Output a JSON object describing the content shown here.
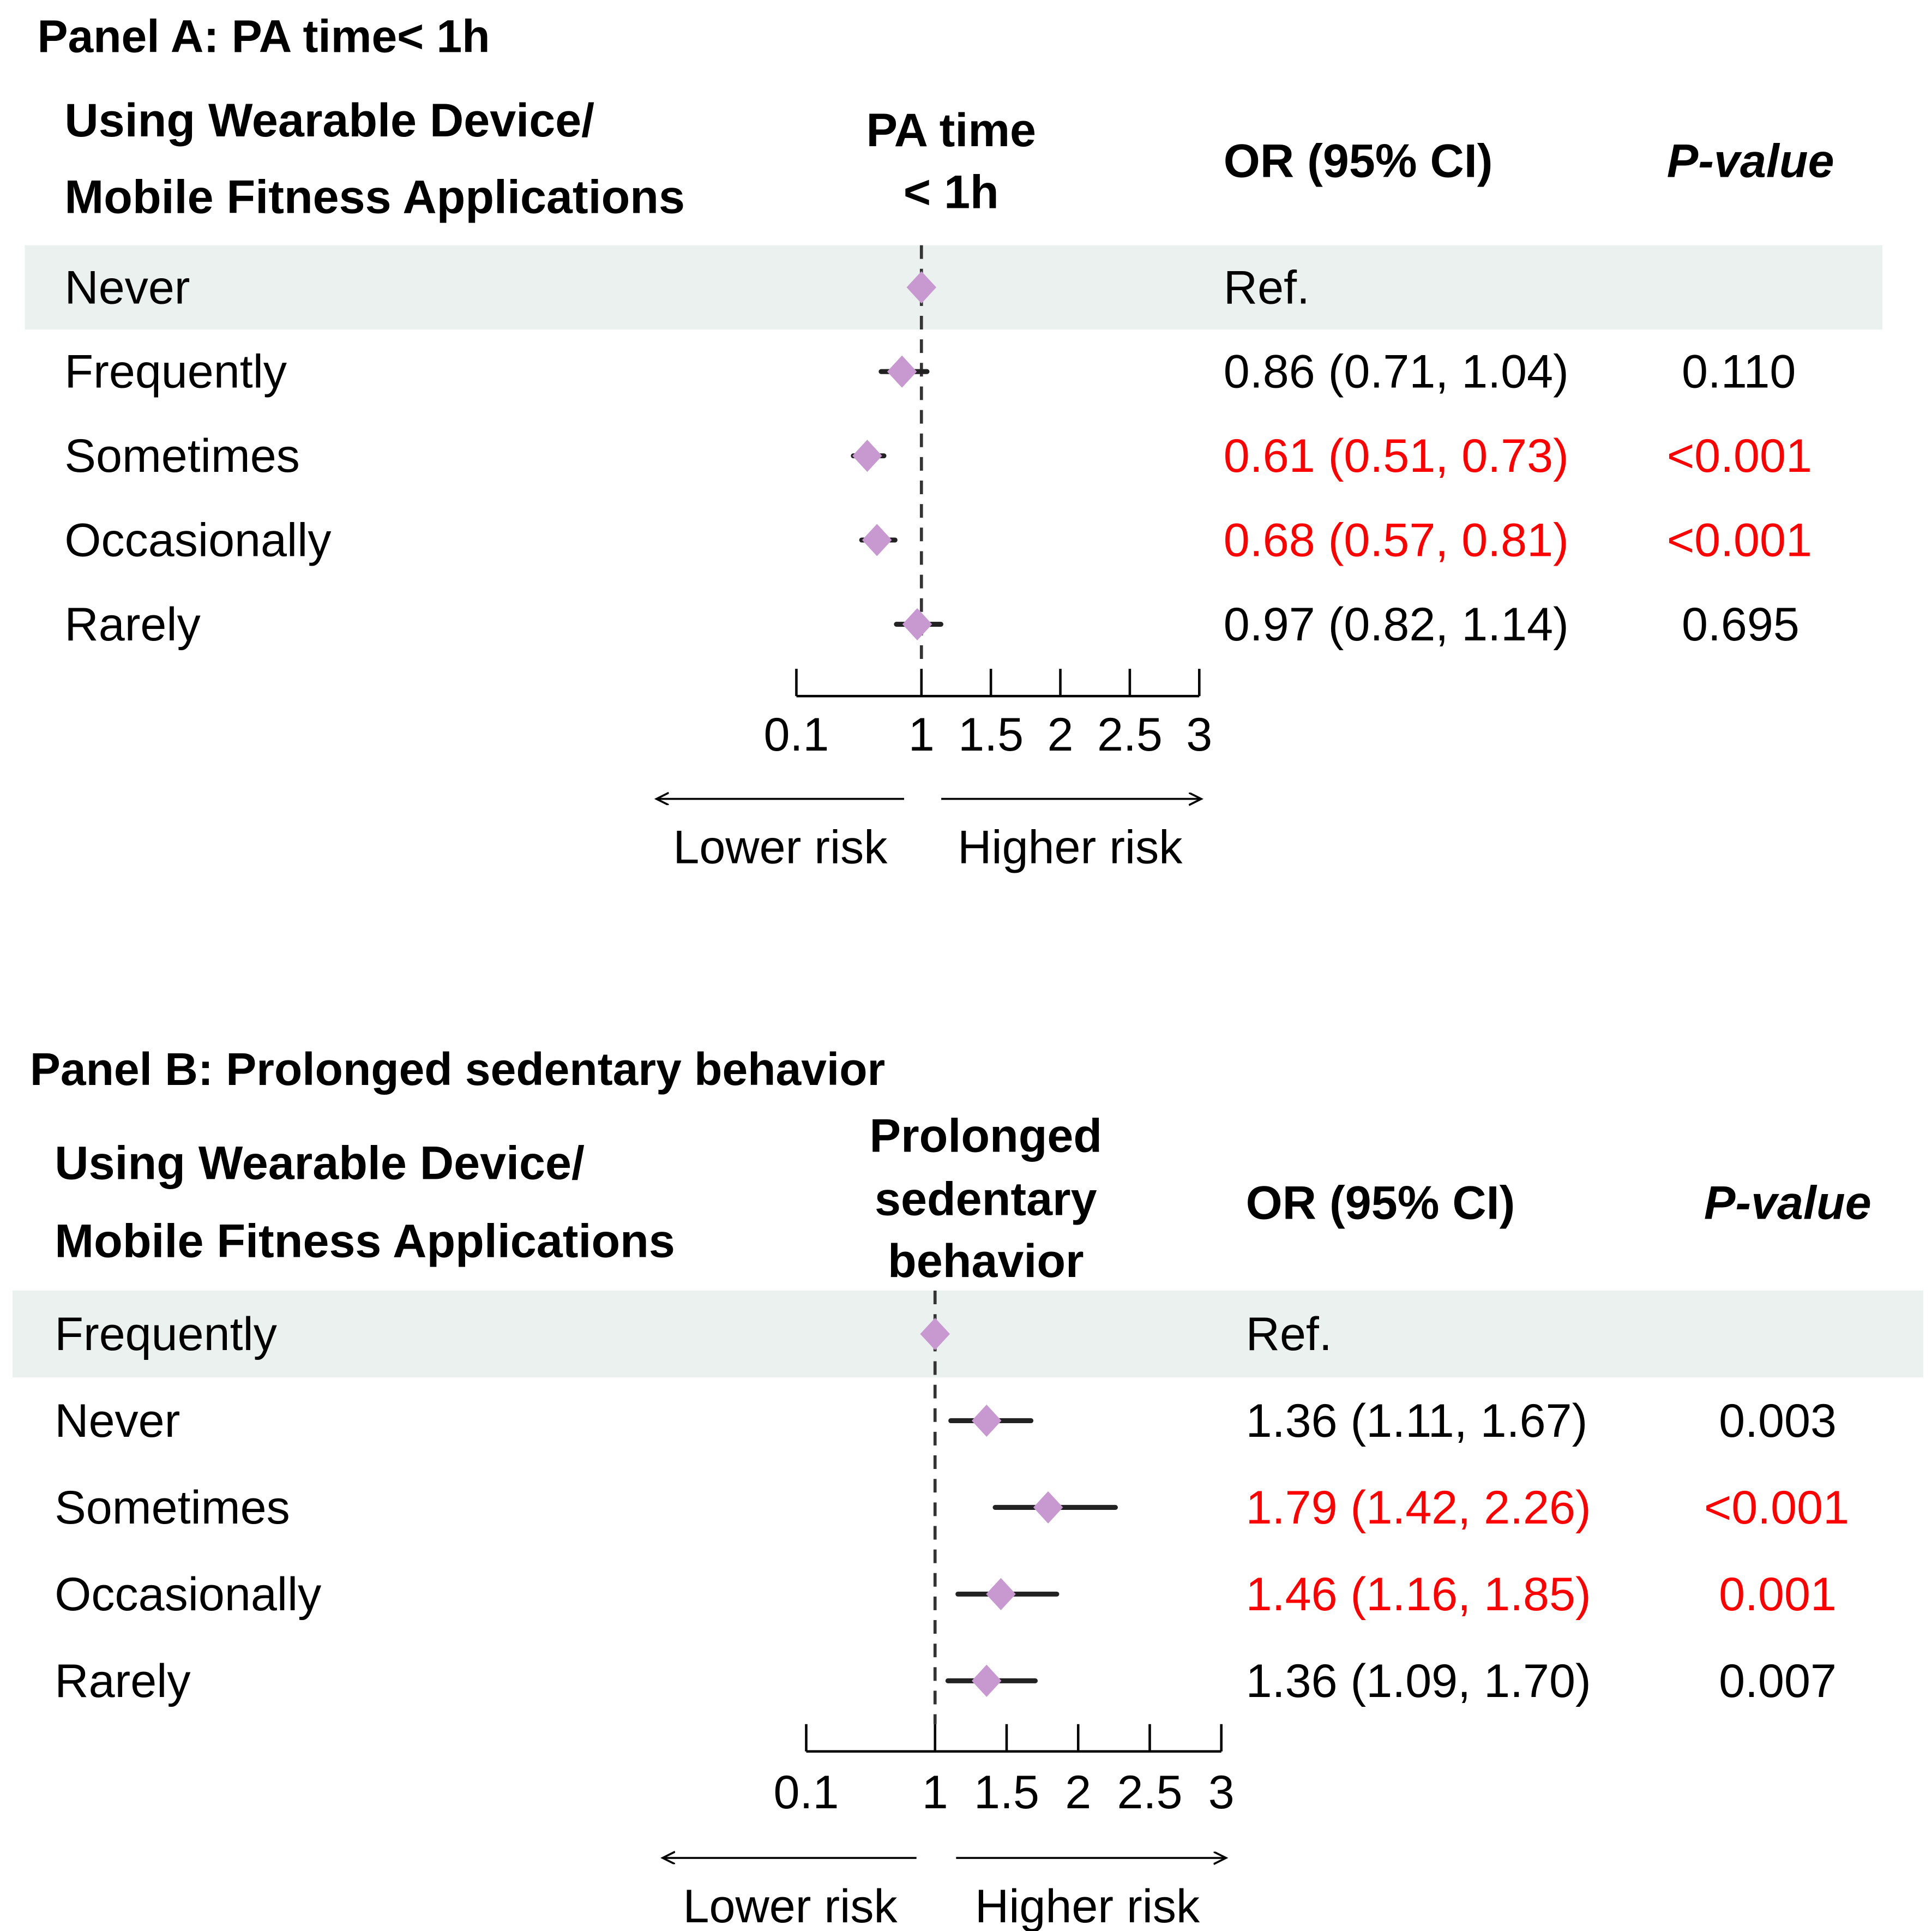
{
  "colors": {
    "band": "#eaf1ee",
    "marker": "#c899d0",
    "ci": "#222222",
    "significant": "#ff0000",
    "text": "#000000"
  },
  "chart_data": [
    {
      "type": "forest",
      "title": "Panel A: PA time< 1h",
      "column_headers": {
        "group": [
          "Using Wearable Device/",
          "Mobile Fitness Applications"
        ],
        "plot": [
          "PA time",
          "< 1h"
        ],
        "or": "OR (95% CI)",
        "p": "P-value"
      },
      "xlim": [
        0.1,
        3
      ],
      "ticks": [
        "0.1",
        "1",
        "1.5",
        "2",
        "2.5",
        "3"
      ],
      "tick_values": [
        0.1,
        1,
        1.5,
        2,
        2.5,
        3
      ],
      "reference_line": 1,
      "direction_labels": {
        "lower": "Lower risk",
        "higher": "Higher risk"
      },
      "rows": [
        {
          "label": "Never",
          "or": 1,
          "lo": null,
          "hi": null,
          "or_text": "Ref.",
          "p": "",
          "significant": false
        },
        {
          "label": "Frequently",
          "or": 0.86,
          "lo": 0.71,
          "hi": 1.04,
          "or_text": "0.86 (0.71, 1.04)",
          "p": "0.110",
          "significant": false
        },
        {
          "label": "Sometimes",
          "or": 0.61,
          "lo": 0.51,
          "hi": 0.73,
          "or_text": "0.61 (0.51, 0.73)",
          "p": "<0.001",
          "significant": true
        },
        {
          "label": "Occasionally",
          "or": 0.68,
          "lo": 0.57,
          "hi": 0.81,
          "or_text": "0.68 (0.57, 0.81)",
          "p": "<0.001",
          "significant": true
        },
        {
          "label": "Rarely",
          "or": 0.97,
          "lo": 0.82,
          "hi": 1.14,
          "or_text": "0.97 (0.82, 1.14)",
          "p": "0.695",
          "significant": false
        }
      ]
    },
    {
      "type": "forest",
      "title": "Panel B: Prolonged sedentary behavior",
      "column_headers": {
        "group": [
          "Using Wearable Device/",
          "Mobile Fitness Applications"
        ],
        "plot": [
          "Prolonged",
          "sedentary",
          "behavior"
        ],
        "or": "OR (95% CI)",
        "p": "P-value"
      },
      "xlim": [
        0.1,
        3
      ],
      "ticks": [
        "0.1",
        "1",
        "1.5",
        "2",
        "2.5",
        "3"
      ],
      "tick_values": [
        0.1,
        1,
        1.5,
        2,
        2.5,
        3
      ],
      "reference_line": 1,
      "direction_labels": {
        "lower": "Lower risk",
        "higher": "Higher risk"
      },
      "rows": [
        {
          "label": "Frequently",
          "or": 1,
          "lo": null,
          "hi": null,
          "or_text": "Ref.",
          "p": "",
          "significant": false
        },
        {
          "label": "Never",
          "or": 1.36,
          "lo": 1.11,
          "hi": 1.67,
          "or_text": "1.36 (1.11, 1.67)",
          "p": "0.003",
          "significant": false
        },
        {
          "label": "Sometimes",
          "or": 1.79,
          "lo": 1.42,
          "hi": 2.26,
          "or_text": "1.79 (1.42, 2.26)",
          "p": "<0.001",
          "significant": true
        },
        {
          "label": "Occasionally",
          "or": 1.46,
          "lo": 1.16,
          "hi": 1.85,
          "or_text": "1.46 (1.16, 1.85)",
          "p": "0.001",
          "significant": true
        },
        {
          "label": "Rarely",
          "or": 1.36,
          "lo": 1.09,
          "hi": 1.7,
          "or_text": "1.36 (1.09, 1.70)",
          "p": "0.007",
          "significant": false
        }
      ]
    }
  ]
}
